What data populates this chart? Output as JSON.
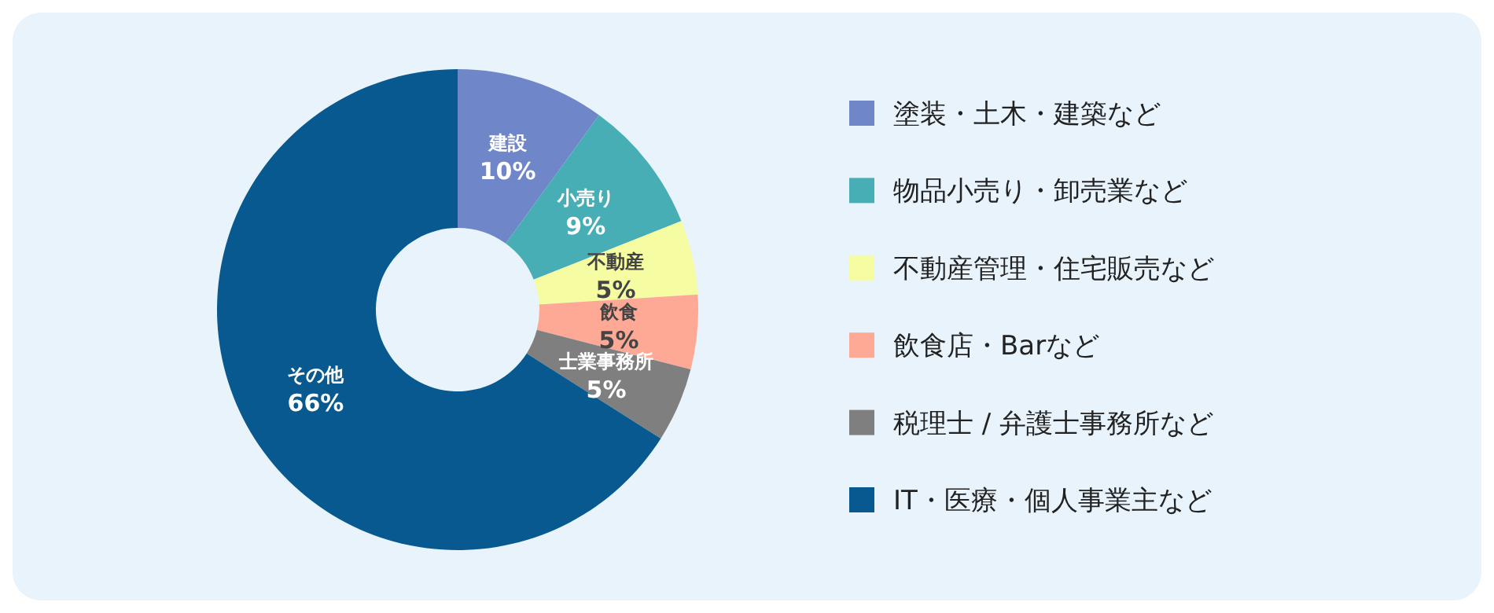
{
  "chart_data": {
    "type": "donut",
    "categories": [
      "塗装・土木・建築など",
      "物品小売り・卸売業など",
      "不動産管理・住宅販売など",
      "飲食店・Barなど",
      "税理士 / 弁護士事務所など",
      "IT・医療・個人事業主など"
    ],
    "values": [
      10,
      9,
      5,
      5,
      5,
      66
    ],
    "colors": [
      "#6f87c9",
      "#48aeb5",
      "#f5fca2",
      "#fda996",
      "#7f7f7f",
      "#07598f"
    ],
    "value_labels": [
      "10%",
      "9%",
      "5%",
      "5%",
      "5%",
      "66%"
    ],
    "annotations": [
      {
        "text": "建設",
        "x": "塗装・土木・建築など"
      },
      {
        "text": "小売り",
        "x": "物品小売り・卸売業など"
      },
      {
        "text": "不動産",
        "x": "不動産管理・住宅販売など"
      },
      {
        "text": "飲食",
        "x": "飲食店・Barなど"
      },
      {
        "text": "士業事務所",
        "x": "税理士 / 弁護士事務所など"
      },
      {
        "text": "その他",
        "x": "IT・医療・個人事業主など"
      }
    ],
    "legend": "right"
  }
}
